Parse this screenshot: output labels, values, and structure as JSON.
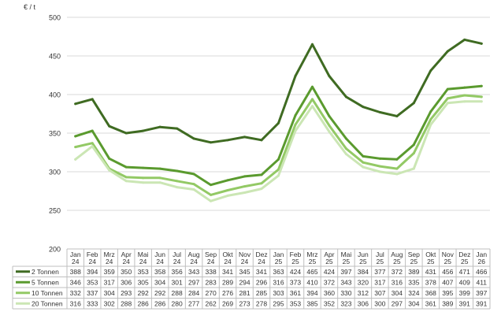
{
  "chart_data": {
    "type": "line",
    "ylabel": "€ / t",
    "ylim": [
      200,
      500
    ],
    "yticks": [
      200,
      250,
      300,
      350,
      400,
      450,
      500
    ],
    "grid": "horizontal",
    "legend_placement": "data-table-rows",
    "categories": [
      [
        "Jan",
        "24"
      ],
      [
        "Feb",
        "24"
      ],
      [
        "Mrz",
        "24"
      ],
      [
        "Apr",
        "24"
      ],
      [
        "Mai",
        "24"
      ],
      [
        "Jun",
        "24"
      ],
      [
        "Jul",
        "24"
      ],
      [
        "Aug",
        "24"
      ],
      [
        "Sep",
        "24"
      ],
      [
        "Okt",
        "24"
      ],
      [
        "Nov",
        "24"
      ],
      [
        "Dez",
        "24"
      ],
      [
        "Jan",
        "25"
      ],
      [
        "Feb",
        "25"
      ],
      [
        "Mrz",
        "25"
      ],
      [
        "Apr",
        "25"
      ],
      [
        "Mai",
        "25"
      ],
      [
        "Jun",
        "25"
      ],
      [
        "Jul",
        "25"
      ],
      [
        "Aug",
        "25"
      ],
      [
        "Sep",
        "25"
      ],
      [
        "Okt",
        "25"
      ],
      [
        "Nov",
        "25"
      ],
      [
        "Dez",
        "25"
      ],
      [
        "Jan",
        "26"
      ]
    ],
    "series": [
      {
        "name": "2 Tonnen",
        "color": "#3f6b22",
        "values": [
          388,
          394,
          359,
          350,
          353,
          358,
          356,
          343,
          338,
          341,
          345,
          341,
          363,
          424,
          465,
          424,
          397,
          384,
          377,
          372,
          389,
          431,
          456,
          471,
          466
        ]
      },
      {
        "name": "5 Tonnen",
        "color": "#5a9a2e",
        "values": [
          346,
          353,
          317,
          306,
          305,
          304,
          301,
          297,
          283,
          289,
          294,
          296,
          316,
          373,
          410,
          372,
          343,
          320,
          317,
          316,
          335,
          378,
          407,
          409,
          411
        ]
      },
      {
        "name": "10 Tonnen",
        "color": "#93c965",
        "values": [
          332,
          337,
          304,
          293,
          292,
          292,
          288,
          284,
          270,
          276,
          281,
          285,
          303,
          361,
          394,
          360,
          330,
          312,
          307,
          304,
          324,
          368,
          395,
          399,
          397
        ]
      },
      {
        "name": "20 Tonnen",
        "color": "#cbe6b4",
        "values": [
          316,
          333,
          302,
          288,
          286,
          286,
          280,
          277,
          262,
          269,
          273,
          278,
          295,
          353,
          385,
          352,
          323,
          306,
          300,
          297,
          304,
          361,
          389,
          391,
          391
        ]
      }
    ]
  }
}
